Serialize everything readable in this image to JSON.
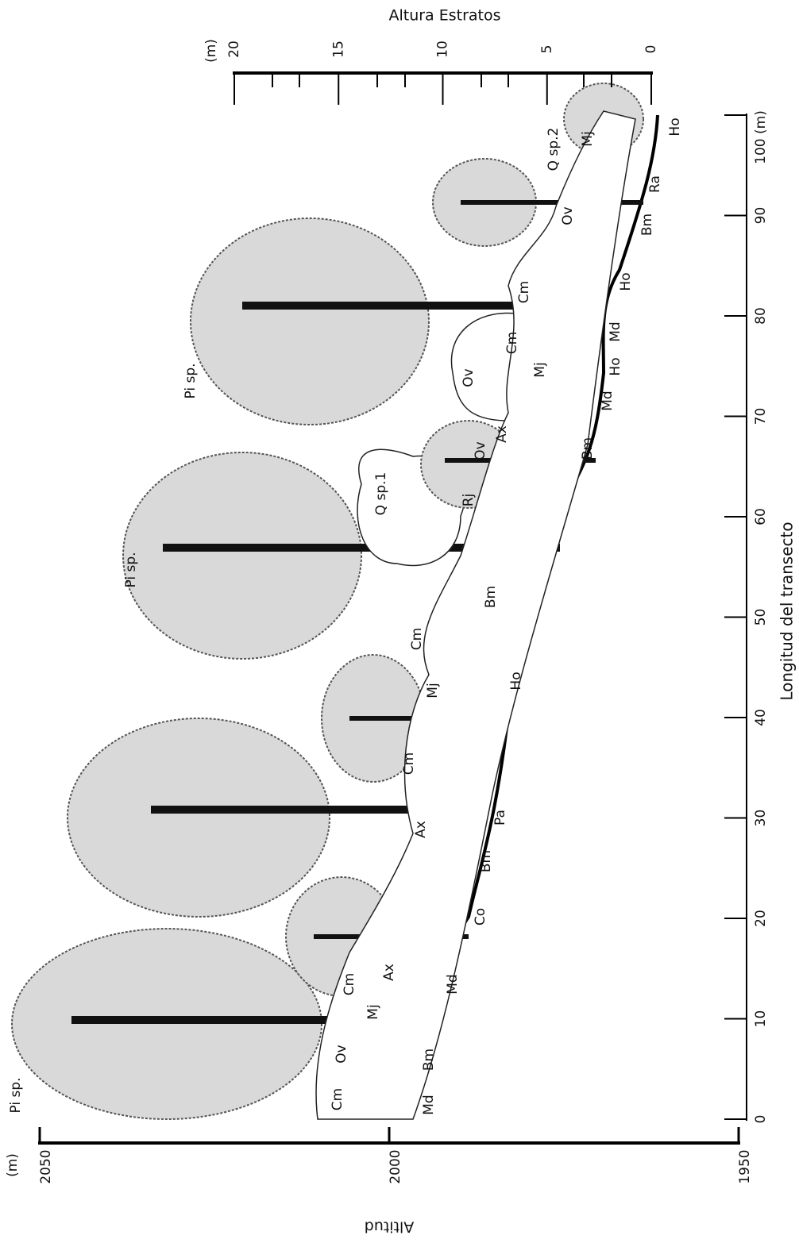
{
  "top_axis": {
    "title": "Altura Estratos",
    "unit": "(m)",
    "ticks": [
      20,
      15,
      10,
      5,
      0
    ]
  },
  "right_axis": {
    "title": "Longitud del transecto",
    "ticks": [
      0,
      10,
      20,
      30,
      40,
      50,
      60,
      70,
      80,
      90,
      {
        "value": 100,
        "label": "100 (m)"
      }
    ]
  },
  "bottom_axis": {
    "title": "Altitud",
    "unit": "(m)",
    "ticks": [
      2050,
      2000,
      1950
    ]
  },
  "species_labels": [
    "Pi sp.",
    "Cm",
    "Ov",
    "Md",
    "Bm",
    "Mj",
    "Cm",
    "Ax",
    "Md",
    "Co",
    "Bm",
    "Pa",
    "Ax",
    "Cm",
    "Mj",
    "Cm",
    "Ho",
    "Pi sp.",
    "Bm",
    "Rj",
    "Ov",
    "Ax",
    "Q sp.1",
    "Bm",
    "Md",
    "Cm",
    "Ho",
    "Mj",
    "Ov",
    "Pi sp.",
    "Md",
    "Cm",
    "Ho",
    "Bm",
    "Ov",
    "Ra",
    "Q sp.2",
    "Mj",
    "Ho"
  ]
}
